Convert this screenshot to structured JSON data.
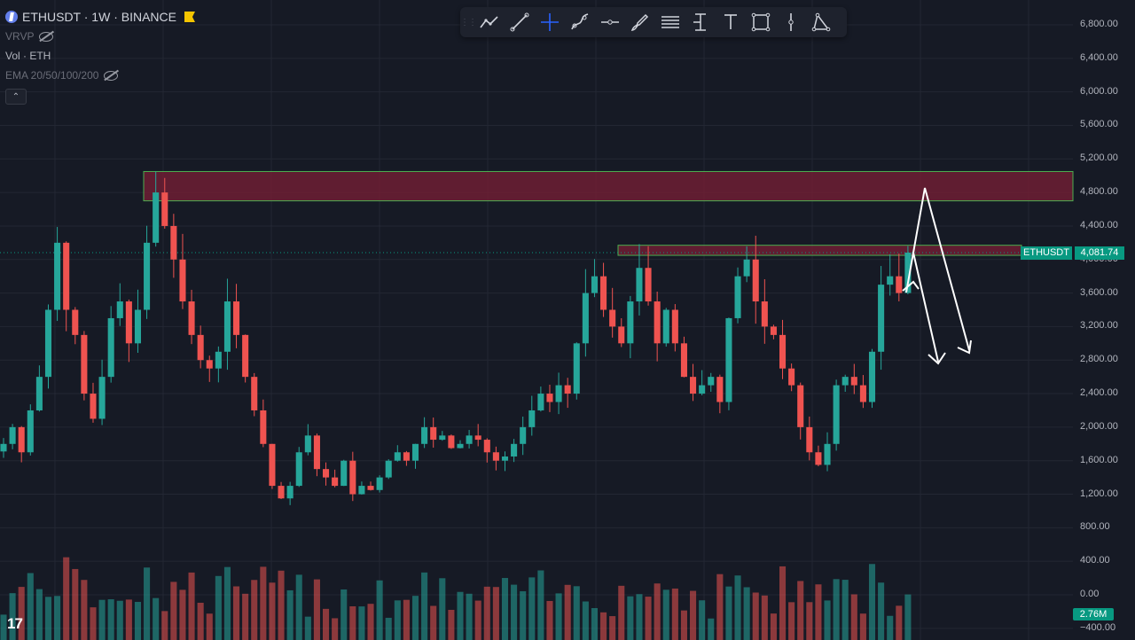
{
  "symbol": {
    "title": "ETHUSDT · 1W · BINANCE",
    "icon": "ethereum-icon",
    "flag_color": "#f5c500"
  },
  "indicators": {
    "vrvp": "VRVP",
    "volume": "Vol · ETH",
    "ema": "EMA 20/50/100/200"
  },
  "toolbar": [
    {
      "name": "trend-line-icon"
    },
    {
      "name": "line-icon"
    },
    {
      "name": "crosshair-icon"
    },
    {
      "name": "curve-icon"
    },
    {
      "name": "horizontal-ray-icon"
    },
    {
      "name": "brush-icon"
    },
    {
      "name": "fib-retracement-icon"
    },
    {
      "name": "price-range-icon"
    },
    {
      "name": "text-icon"
    },
    {
      "name": "rectangle-icon"
    },
    {
      "name": "vertical-line-icon"
    },
    {
      "name": "triangle-icon"
    }
  ],
  "price_axis": [
    "6,800.00",
    "6,400.00",
    "6,000.00",
    "5,600.00",
    "5,200.00",
    "4,800.00",
    "4,400.00",
    "4,000.00",
    "3,600.00",
    "3,200.00",
    "2,800.00",
    "2,400.00",
    "2,000.00",
    "1,600.00",
    "1,200.00",
    "800.00",
    "400.00",
    "0.00",
    "−400.00"
  ],
  "last_price": {
    "label": "ETHUSDT",
    "value": "4,081.74"
  },
  "volume_badge": "2.76M",
  "logo": "17",
  "colors": {
    "background": "#161a25",
    "up": "#26a69a",
    "down": "#ef5350",
    "zone": "#7a1f35",
    "zone_border": "#4caf50",
    "badge": "#089981"
  },
  "chart_data": {
    "type": "candlestick",
    "ylim": [
      -400,
      6800
    ],
    "zones": [
      {
        "from": 4700,
        "to": 5050,
        "label": ""
      },
      {
        "from": 4050,
        "to": 4170,
        "label": ""
      }
    ],
    "last": 4081.74,
    "closes": [
      1800,
      2000,
      1700,
      2200,
      2600,
      3400,
      4200,
      3400,
      3100,
      2400,
      2100,
      2600,
      3300,
      3500,
      3000,
      3400,
      4200,
      4800,
      4400,
      4000,
      3500,
      3100,
      2800,
      2700,
      2900,
      3500,
      3100,
      2600,
      2200,
      1800,
      1300,
      1150,
      1300,
      1700,
      1900,
      1500,
      1400,
      1300,
      1600,
      1200,
      1300,
      1250,
      1400,
      1600,
      1700,
      1600,
      1800,
      2000,
      1850,
      1900,
      1750,
      1800,
      1900,
      1850,
      1700,
      1600,
      1650,
      1800,
      2000,
      2200,
      2400,
      2300,
      2500,
      2400,
      3000,
      3600,
      3800,
      3400,
      3200,
      3000,
      3500,
      3900,
      3500,
      3000,
      3400,
      3000,
      2600,
      2400,
      2500,
      2600,
      2300,
      3300,
      3800,
      4000,
      3500,
      3200,
      3100,
      2700,
      2500,
      2000,
      1700,
      1550,
      1800,
      2500,
      2600,
      2500,
      2300,
      2900,
      3700,
      3800,
      3600,
      4081.74
    ]
  }
}
